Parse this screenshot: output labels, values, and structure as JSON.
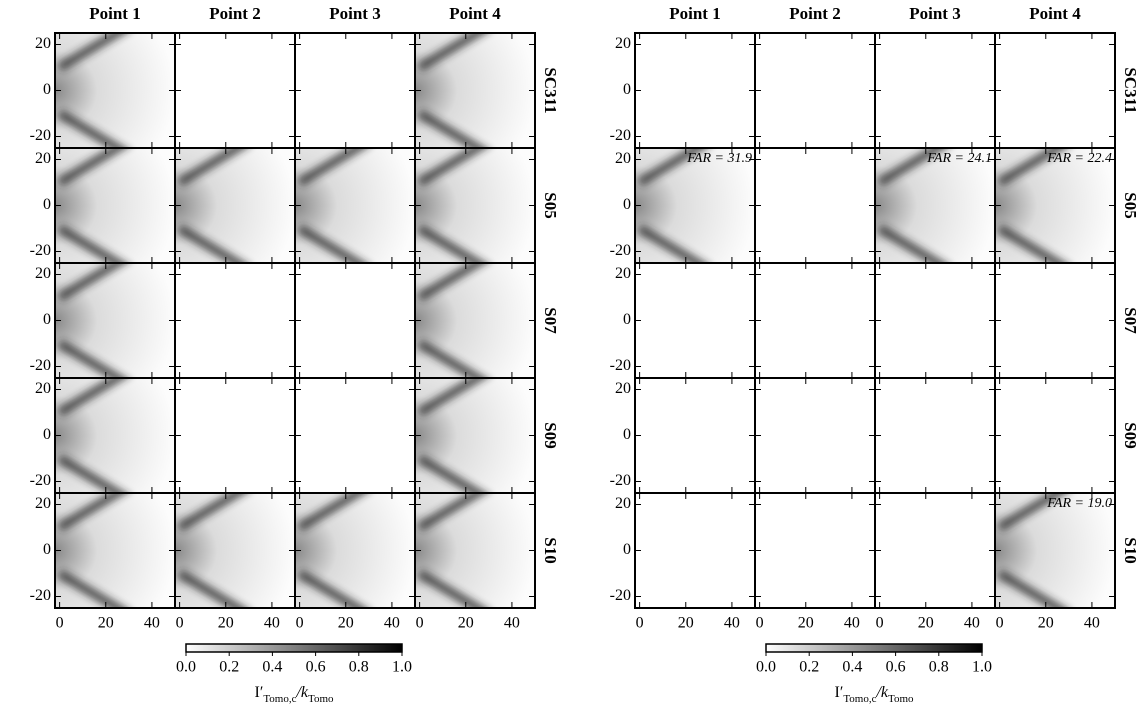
{
  "chart_data": [
    {
      "type": "image-grid",
      "columns": [
        "Point 1",
        "Point 2",
        "Point 3",
        "Point 4"
      ],
      "rows": [
        "SC311",
        "S05",
        "S07",
        "S09",
        "S10"
      ],
      "xlim": [
        -2,
        50
      ],
      "ylim": [
        -25,
        25
      ],
      "xticks": [
        0,
        20,
        40
      ],
      "yticks": [
        -20,
        0,
        20
      ],
      "images": [
        [
          true,
          false,
          false,
          true
        ],
        [
          true,
          true,
          true,
          true
        ],
        [
          true,
          false,
          false,
          true
        ],
        [
          true,
          false,
          false,
          true
        ],
        [
          true,
          true,
          true,
          true
        ]
      ],
      "annotations": [
        [
          null,
          null,
          null,
          null
        ],
        [
          null,
          null,
          null,
          null
        ],
        [
          null,
          null,
          null,
          null
        ],
        [
          null,
          null,
          null,
          null
        ],
        [
          null,
          null,
          null,
          null
        ]
      ],
      "colorbar": {
        "lim": [
          0,
          1
        ],
        "ticks": [
          {
            "value": 0,
            "label": "0.0"
          },
          {
            "value": 0.2,
            "label": "0.2"
          },
          {
            "value": 0.4,
            "label": "0.4"
          },
          {
            "value": 0.6,
            "label": "0.6"
          },
          {
            "value": 0.8,
            "label": "0.8"
          },
          {
            "value": 1,
            "label": "1.0"
          }
        ],
        "label": [
          "I′",
          "Tomo,c",
          "/k",
          "Tomo"
        ]
      }
    },
    {
      "type": "image-grid",
      "columns": [
        "Point 1",
        "Point 2",
        "Point 3",
        "Point 4"
      ],
      "rows": [
        "SC311",
        "S05",
        "S07",
        "S09",
        "S10"
      ],
      "xlim": [
        -2,
        50
      ],
      "ylim": [
        -25,
        25
      ],
      "xticks": [
        0,
        20,
        40
      ],
      "yticks": [
        -20,
        0,
        20
      ],
      "images": [
        [
          false,
          false,
          false,
          false
        ],
        [
          true,
          false,
          true,
          true
        ],
        [
          false,
          false,
          false,
          false
        ],
        [
          false,
          false,
          false,
          false
        ],
        [
          false,
          false,
          false,
          true
        ]
      ],
      "annotations": [
        [
          null,
          null,
          null,
          null
        ],
        [
          "FAR = 31.9",
          null,
          "FAR = 24.1",
          "FAR = 22.4"
        ],
        [
          null,
          null,
          null,
          null
        ],
        [
          null,
          null,
          null,
          null
        ],
        [
          null,
          null,
          null,
          "FAR = 19.0"
        ]
      ],
      "colorbar": {
        "lim": [
          0,
          1
        ],
        "ticks": [
          {
            "value": 0,
            "label": "0.0"
          },
          {
            "value": 0.2,
            "label": "0.2"
          },
          {
            "value": 0.4,
            "label": "0.4"
          },
          {
            "value": 0.6,
            "label": "0.6"
          },
          {
            "value": 0.8,
            "label": "0.8"
          },
          {
            "value": 1,
            "label": "1.0"
          }
        ],
        "label": [
          "I′",
          "Tomo,c",
          "/k",
          "Tomo"
        ]
      }
    }
  ]
}
